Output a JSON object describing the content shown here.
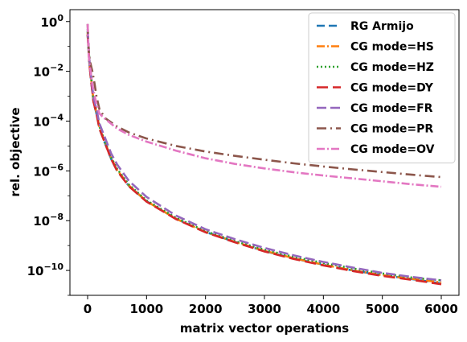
{
  "chart_data": {
    "type": "line",
    "xlabel": "matrix vector operations",
    "ylabel": "rel. objective",
    "x_ticks": [
      0,
      1000,
      2000,
      3000,
      4000,
      5000,
      6000
    ],
    "x_tick_labels": [
      "0",
      "1000",
      "2000",
      "3000",
      "4000",
      "5000",
      "6000"
    ],
    "y_ticks": [
      1,
      0.01,
      0.0001,
      1e-06,
      1e-08,
      1e-10
    ],
    "y_tick_labels": [
      {
        "base": "10",
        "exp": "0"
      },
      {
        "base": "10",
        "exp": "−2"
      },
      {
        "base": "10",
        "exp": "−4"
      },
      {
        "base": "10",
        "exp": "−6"
      },
      {
        "base": "10",
        "exp": "−8"
      },
      {
        "base": "10",
        "exp": "−10"
      }
    ],
    "xlim": [
      -300,
      6300
    ],
    "ylim": [
      1e-11,
      3
    ],
    "yscale": "log",
    "grid": false,
    "legend_position": "top-right",
    "series": [
      {
        "name": "RG Armijo",
        "color": "#1f77b4",
        "dash": "10,5",
        "x": [
          0,
          30,
          60,
          100,
          150,
          200,
          300,
          400,
          500,
          700,
          1000,
          1500,
          2000,
          2500,
          3000,
          3500,
          4000,
          4500,
          5000,
          5500,
          6000
        ],
        "y": [
          0.3,
          0.02,
          0.004,
          0.0006,
          0.0002,
          5e-05,
          1.2e-05,
          3e-06,
          1e-06,
          2.5e-07,
          6e-08,
          1.2e-08,
          3.5e-09,
          1.4e-09,
          6e-10,
          3e-10,
          1.7e-10,
          1e-10,
          6.5e-11,
          4.5e-11,
          3e-11
        ]
      },
      {
        "name": "CG mode=HS",
        "color": "#ff7f0e",
        "dash": "10,3,2,3",
        "x": [
          0,
          30,
          60,
          100,
          150,
          200,
          300,
          400,
          500,
          700,
          1000,
          1500,
          2000,
          2500,
          3000,
          3500,
          4000,
          4500,
          5000,
          5500,
          6000
        ],
        "y": [
          0.35,
          0.025,
          0.005,
          0.0007,
          0.00022,
          5.5e-05,
          1.3e-05,
          3.2e-06,
          1.1e-06,
          2.6e-07,
          6e-08,
          1.2e-08,
          3.5e-09,
          1.4e-09,
          6.2e-10,
          3.1e-10,
          1.7e-10,
          1e-10,
          6.5e-11,
          4.6e-11,
          3.3e-11
        ]
      },
      {
        "name": "CG mode=HZ",
        "color": "#2ca02c",
        "dash": "2,3",
        "x": [
          0,
          30,
          60,
          100,
          150,
          200,
          300,
          400,
          500,
          700,
          1000,
          1500,
          2000,
          2500,
          3000,
          3500,
          4000,
          4500,
          5000,
          5500,
          6000
        ],
        "y": [
          0.4,
          0.03,
          0.006,
          0.0008,
          0.00025,
          6e-05,
          1.4e-05,
          3.5e-06,
          1.2e-06,
          2.8e-07,
          6.5e-08,
          1.3e-08,
          3.8e-09,
          1.5e-09,
          6.8e-10,
          3.5e-10,
          2e-10,
          1.2e-10,
          7.5e-11,
          5.2e-11,
          4e-11
        ]
      },
      {
        "name": "CG mode=DY",
        "color": "#d62728",
        "dash": "14,6",
        "x": [
          0,
          30,
          60,
          100,
          150,
          200,
          300,
          400,
          500,
          700,
          1000,
          1500,
          2000,
          2500,
          3000,
          3500,
          4000,
          4500,
          5000,
          5500,
          6000
        ],
        "y": [
          0.3,
          0.02,
          0.004,
          0.0006,
          0.0002,
          5e-05,
          1.2e-05,
          3e-06,
          1e-06,
          2.4e-07,
          5.8e-08,
          1.15e-08,
          3.4e-09,
          1.35e-09,
          5.8e-10,
          2.9e-10,
          1.6e-10,
          9.5e-11,
          6e-11,
          4.2e-11,
          2.8e-11
        ]
      },
      {
        "name": "CG mode=FR",
        "color": "#9467bd",
        "dash": "12,5",
        "x": [
          0,
          30,
          60,
          100,
          150,
          200,
          300,
          400,
          500,
          700,
          1000,
          1500,
          2000,
          2500,
          3000,
          3500,
          4000,
          4500,
          5000,
          5500,
          6000
        ],
        "y": [
          0.5,
          0.03,
          0.006,
          0.0009,
          0.0003,
          8e-05,
          2e-05,
          5e-06,
          1.8e-06,
          4e-07,
          9e-08,
          1.6e-08,
          4.5e-09,
          1.8e-09,
          8e-10,
          4e-10,
          2.2e-10,
          1.3e-10,
          8e-11,
          5.5e-11,
          4e-11
        ]
      },
      {
        "name": "CG mode=PR",
        "color": "#8c564b",
        "dash": "12,5,2,5",
        "x": [
          0,
          20,
          50,
          80,
          120,
          150,
          200,
          300,
          500,
          700,
          1000,
          1500,
          2000,
          2500,
          3000,
          3500,
          4000,
          4500,
          5000,
          5500,
          6000
        ],
        "y": [
          0.8,
          0.05,
          0.02,
          0.01,
          0.003,
          0.001,
          0.0003,
          0.00013,
          6e-05,
          3.5e-05,
          2e-05,
          1e-05,
          6e-06,
          4e-06,
          2.8e-06,
          2e-06,
          1.5e-06,
          1.15e-06,
          9e-07,
          7e-07,
          5.6e-07
        ]
      },
      {
        "name": "CG mode=OV",
        "color": "#e377c2",
        "dash": "10,3,2,3",
        "x": [
          0,
          20,
          50,
          80,
          120,
          150,
          200,
          300,
          500,
          700,
          1000,
          1500,
          2000,
          2500,
          3000,
          3500,
          4000,
          4500,
          5000,
          5500,
          6000
        ],
        "y": [
          0.8,
          0.04,
          0.01,
          0.003,
          0.001,
          0.0005,
          0.0002,
          0.00012,
          5e-05,
          2.8e-05,
          1.5e-05,
          6.5e-06,
          3.2e-06,
          1.9e-06,
          1.25e-06,
          8.8e-07,
          6.5e-07,
          5e-07,
          3.8e-07,
          2.9e-07,
          2.3e-07
        ]
      }
    ]
  }
}
